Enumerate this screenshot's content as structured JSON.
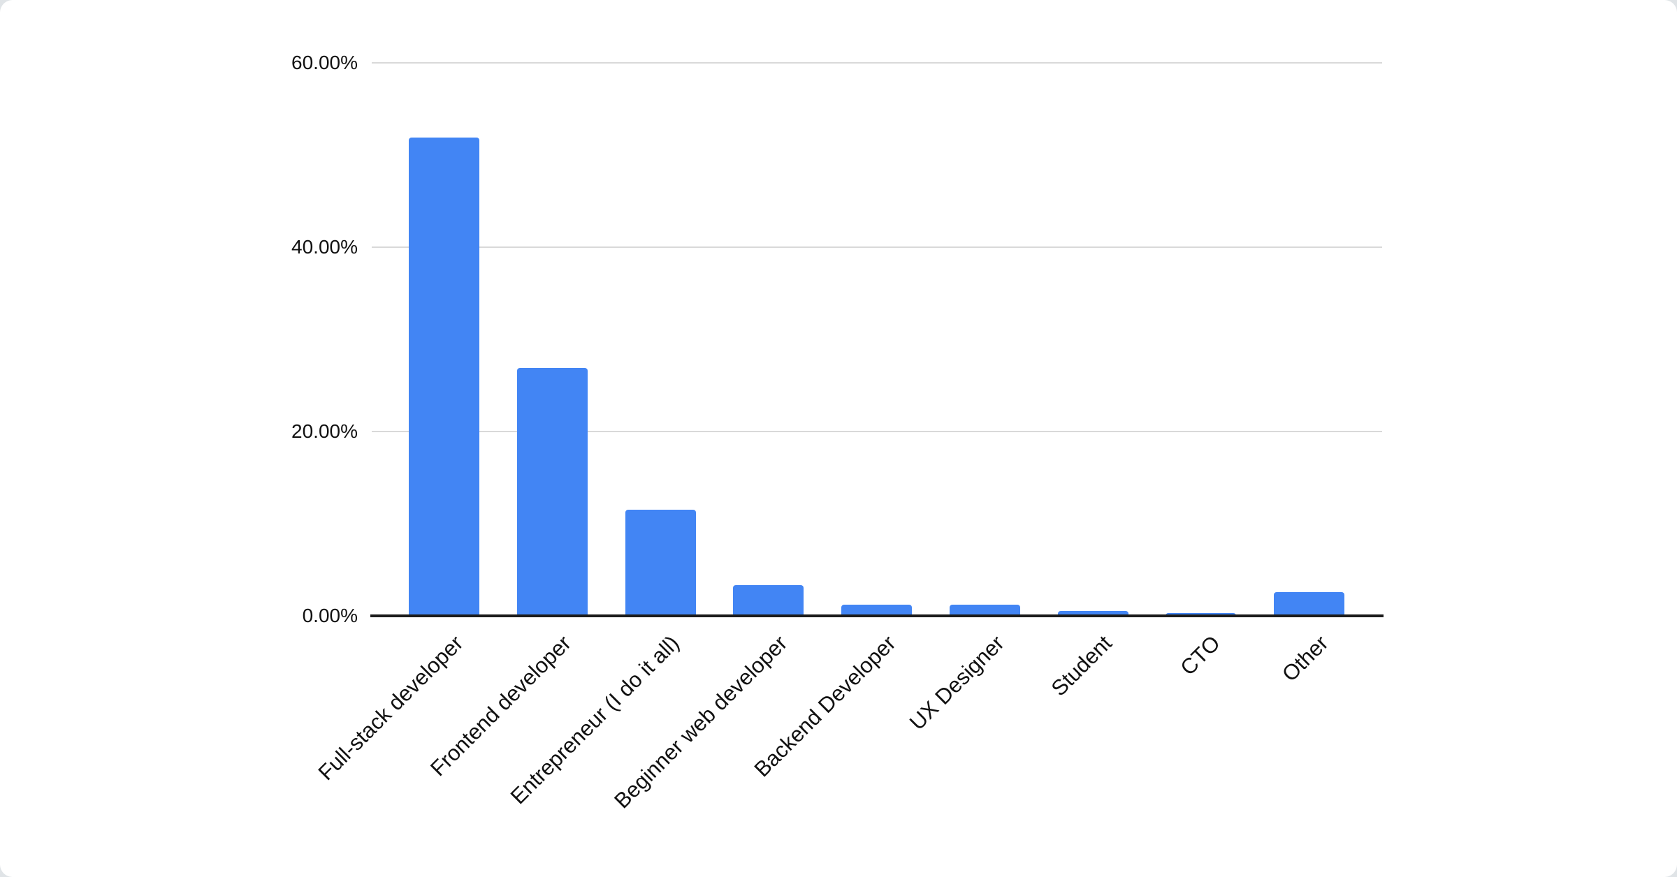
{
  "colors": {
    "bar": "#4285f4",
    "gridline": "#d9d9d9",
    "axis": "#1c1c1c",
    "card_background": "#ffffff",
    "page_background": "#e0e4e7",
    "label_text": "#111111"
  },
  "chart_data": {
    "type": "bar",
    "title": "",
    "xlabel": "",
    "ylabel": "",
    "categories": [
      "Full-stack developer",
      "Frontend developer",
      "Entrepreneur (I do it all)",
      "Beginner web developer",
      "Backend Developer",
      "UX Designer",
      "Student",
      "CTO",
      "Other"
    ],
    "values": [
      51.9,
      26.9,
      11.5,
      3.3,
      1.2,
      1.2,
      0.5,
      0.3,
      2.6
    ],
    "y_ticks": [
      {
        "label": "60.00%",
        "value": 60
      },
      {
        "label": "40.00%",
        "value": 40
      },
      {
        "label": "20.00%",
        "value": 20
      },
      {
        "label": "0.00%",
        "value": 0
      }
    ],
    "ylim": [
      0,
      60
    ],
    "grid": true,
    "legend": "none",
    "bar_color": "#4285f4",
    "x_label_rotation_deg": 45
  }
}
